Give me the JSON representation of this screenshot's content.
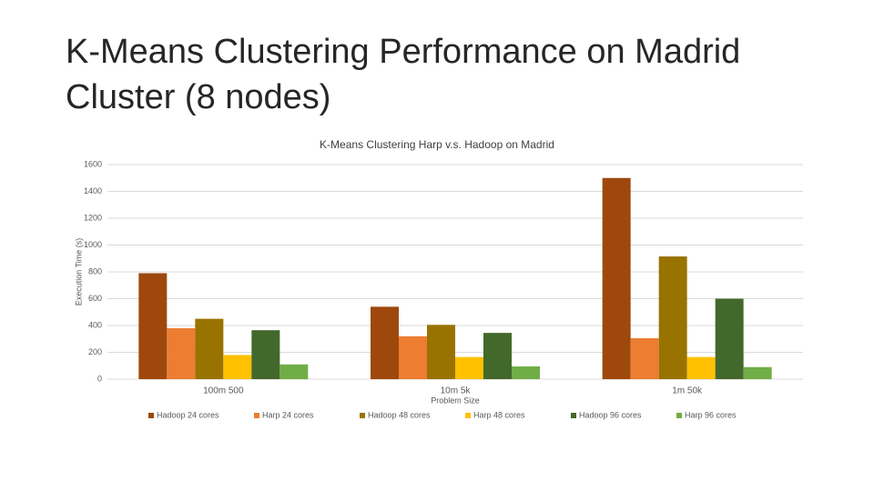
{
  "slide_title": "K-Means Clustering Performance on Madrid Cluster (8 nodes)",
  "chart_data": {
    "type": "bar",
    "title": "K-Means Clustering Harp v.s. Hadoop on Madrid",
    "x_label": "Problem Size",
    "y_label": "Execution Time (s)",
    "categories": [
      "100m 500",
      "10m 5k",
      "1m 50k"
    ],
    "series": [
      {
        "name": "Hadoop 24 cores",
        "color": "#9e480e",
        "values": [
          790,
          540,
          1500
        ]
      },
      {
        "name": "Harp 24 cores",
        "color": "#ed7d31",
        "values": [
          380,
          320,
          305
        ]
      },
      {
        "name": "Hadoop 48 cores",
        "color": "#997300",
        "values": [
          450,
          405,
          915
        ]
      },
      {
        "name": "Harp 48 cores",
        "color": "#ffc000",
        "values": [
          180,
          165,
          165
        ]
      },
      {
        "name": "Hadoop 96 cores",
        "color": "#43682b",
        "values": [
          365,
          345,
          600
        ]
      },
      {
        "name": "Harp 96 cores",
        "color": "#70ad47",
        "values": [
          110,
          95,
          90
        ]
      }
    ],
    "ylim": [
      0,
      1600
    ],
    "yticks": [
      0,
      200,
      400,
      600,
      800,
      1000,
      1200,
      1400,
      1600
    ],
    "grid": true,
    "legend": "bottom"
  }
}
